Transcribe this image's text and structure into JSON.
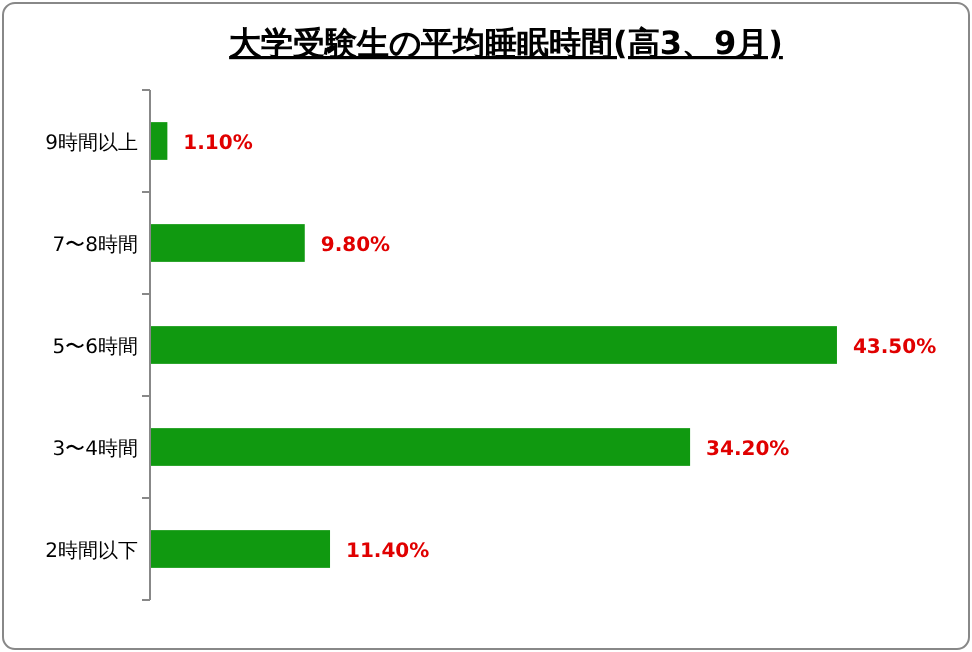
{
  "chart_data": {
    "type": "bar",
    "orientation": "horizontal",
    "title": "大学受験生の平均睡眠時間(高3、9月)",
    "categories": [
      "9時間以上",
      "7〜8時間",
      "5〜6時間",
      "3〜4時間",
      "2時間以下"
    ],
    "values": [
      1.1,
      9.8,
      43.5,
      34.2,
      11.4
    ],
    "color": "#109910",
    "value_labels": [
      "1.10%",
      "9.80%",
      "43.50%",
      "34.20%",
      "11.40%"
    ]
  }
}
